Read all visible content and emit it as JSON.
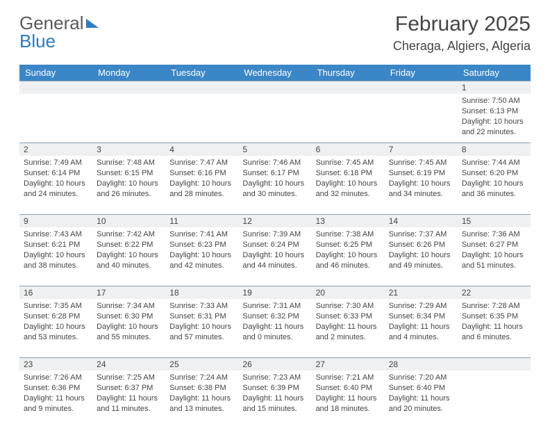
{
  "brand": {
    "part1": "General",
    "part2": "Blue"
  },
  "title": "February 2025",
  "location": "Cheraga, Algiers, Algeria",
  "colors": {
    "header_bg": "#3b86c6",
    "header_text": "#ffffff",
    "daynum_bg": "#eef0f1",
    "rule": "#8aa0b0",
    "text": "#444444",
    "brand_blue": "#2a7bbf"
  },
  "day_headers": [
    "Sunday",
    "Monday",
    "Tuesday",
    "Wednesday",
    "Thursday",
    "Friday",
    "Saturday"
  ],
  "weeks": [
    [
      {
        "n": "",
        "empty": true
      },
      {
        "n": "",
        "empty": true
      },
      {
        "n": "",
        "empty": true
      },
      {
        "n": "",
        "empty": true
      },
      {
        "n": "",
        "empty": true
      },
      {
        "n": "",
        "empty": true
      },
      {
        "n": "1",
        "sunrise": "Sunrise: 7:50 AM",
        "sunset": "Sunset: 6:13 PM",
        "day1": "Daylight: 10 hours",
        "day2": "and 22 minutes."
      }
    ],
    [
      {
        "n": "2",
        "sunrise": "Sunrise: 7:49 AM",
        "sunset": "Sunset: 6:14 PM",
        "day1": "Daylight: 10 hours",
        "day2": "and 24 minutes."
      },
      {
        "n": "3",
        "sunrise": "Sunrise: 7:48 AM",
        "sunset": "Sunset: 6:15 PM",
        "day1": "Daylight: 10 hours",
        "day2": "and 26 minutes."
      },
      {
        "n": "4",
        "sunrise": "Sunrise: 7:47 AM",
        "sunset": "Sunset: 6:16 PM",
        "day1": "Daylight: 10 hours",
        "day2": "and 28 minutes."
      },
      {
        "n": "5",
        "sunrise": "Sunrise: 7:46 AM",
        "sunset": "Sunset: 6:17 PM",
        "day1": "Daylight: 10 hours",
        "day2": "and 30 minutes."
      },
      {
        "n": "6",
        "sunrise": "Sunrise: 7:45 AM",
        "sunset": "Sunset: 6:18 PM",
        "day1": "Daylight: 10 hours",
        "day2": "and 32 minutes."
      },
      {
        "n": "7",
        "sunrise": "Sunrise: 7:45 AM",
        "sunset": "Sunset: 6:19 PM",
        "day1": "Daylight: 10 hours",
        "day2": "and 34 minutes."
      },
      {
        "n": "8",
        "sunrise": "Sunrise: 7:44 AM",
        "sunset": "Sunset: 6:20 PM",
        "day1": "Daylight: 10 hours",
        "day2": "and 36 minutes."
      }
    ],
    [
      {
        "n": "9",
        "sunrise": "Sunrise: 7:43 AM",
        "sunset": "Sunset: 6:21 PM",
        "day1": "Daylight: 10 hours",
        "day2": "and 38 minutes."
      },
      {
        "n": "10",
        "sunrise": "Sunrise: 7:42 AM",
        "sunset": "Sunset: 6:22 PM",
        "day1": "Daylight: 10 hours",
        "day2": "and 40 minutes."
      },
      {
        "n": "11",
        "sunrise": "Sunrise: 7:41 AM",
        "sunset": "Sunset: 6:23 PM",
        "day1": "Daylight: 10 hours",
        "day2": "and 42 minutes."
      },
      {
        "n": "12",
        "sunrise": "Sunrise: 7:39 AM",
        "sunset": "Sunset: 6:24 PM",
        "day1": "Daylight: 10 hours",
        "day2": "and 44 minutes."
      },
      {
        "n": "13",
        "sunrise": "Sunrise: 7:38 AM",
        "sunset": "Sunset: 6:25 PM",
        "day1": "Daylight: 10 hours",
        "day2": "and 46 minutes."
      },
      {
        "n": "14",
        "sunrise": "Sunrise: 7:37 AM",
        "sunset": "Sunset: 6:26 PM",
        "day1": "Daylight: 10 hours",
        "day2": "and 49 minutes."
      },
      {
        "n": "15",
        "sunrise": "Sunrise: 7:36 AM",
        "sunset": "Sunset: 6:27 PM",
        "day1": "Daylight: 10 hours",
        "day2": "and 51 minutes."
      }
    ],
    [
      {
        "n": "16",
        "sunrise": "Sunrise: 7:35 AM",
        "sunset": "Sunset: 6:28 PM",
        "day1": "Daylight: 10 hours",
        "day2": "and 53 minutes."
      },
      {
        "n": "17",
        "sunrise": "Sunrise: 7:34 AM",
        "sunset": "Sunset: 6:30 PM",
        "day1": "Daylight: 10 hours",
        "day2": "and 55 minutes."
      },
      {
        "n": "18",
        "sunrise": "Sunrise: 7:33 AM",
        "sunset": "Sunset: 6:31 PM",
        "day1": "Daylight: 10 hours",
        "day2": "and 57 minutes."
      },
      {
        "n": "19",
        "sunrise": "Sunrise: 7:31 AM",
        "sunset": "Sunset: 6:32 PM",
        "day1": "Daylight: 11 hours",
        "day2": "and 0 minutes."
      },
      {
        "n": "20",
        "sunrise": "Sunrise: 7:30 AM",
        "sunset": "Sunset: 6:33 PM",
        "day1": "Daylight: 11 hours",
        "day2": "and 2 minutes."
      },
      {
        "n": "21",
        "sunrise": "Sunrise: 7:29 AM",
        "sunset": "Sunset: 6:34 PM",
        "day1": "Daylight: 11 hours",
        "day2": "and 4 minutes."
      },
      {
        "n": "22",
        "sunrise": "Sunrise: 7:28 AM",
        "sunset": "Sunset: 6:35 PM",
        "day1": "Daylight: 11 hours",
        "day2": "and 6 minutes."
      }
    ],
    [
      {
        "n": "23",
        "sunrise": "Sunrise: 7:26 AM",
        "sunset": "Sunset: 6:36 PM",
        "day1": "Daylight: 11 hours",
        "day2": "and 9 minutes."
      },
      {
        "n": "24",
        "sunrise": "Sunrise: 7:25 AM",
        "sunset": "Sunset: 6:37 PM",
        "day1": "Daylight: 11 hours",
        "day2": "and 11 minutes."
      },
      {
        "n": "25",
        "sunrise": "Sunrise: 7:24 AM",
        "sunset": "Sunset: 6:38 PM",
        "day1": "Daylight: 11 hours",
        "day2": "and 13 minutes."
      },
      {
        "n": "26",
        "sunrise": "Sunrise: 7:23 AM",
        "sunset": "Sunset: 6:39 PM",
        "day1": "Daylight: 11 hours",
        "day2": "and 15 minutes."
      },
      {
        "n": "27",
        "sunrise": "Sunrise: 7:21 AM",
        "sunset": "Sunset: 6:40 PM",
        "day1": "Daylight: 11 hours",
        "day2": "and 18 minutes."
      },
      {
        "n": "28",
        "sunrise": "Sunrise: 7:20 AM",
        "sunset": "Sunset: 6:40 PM",
        "day1": "Daylight: 11 hours",
        "day2": "and 20 minutes."
      },
      {
        "n": "",
        "empty": true
      }
    ]
  ]
}
